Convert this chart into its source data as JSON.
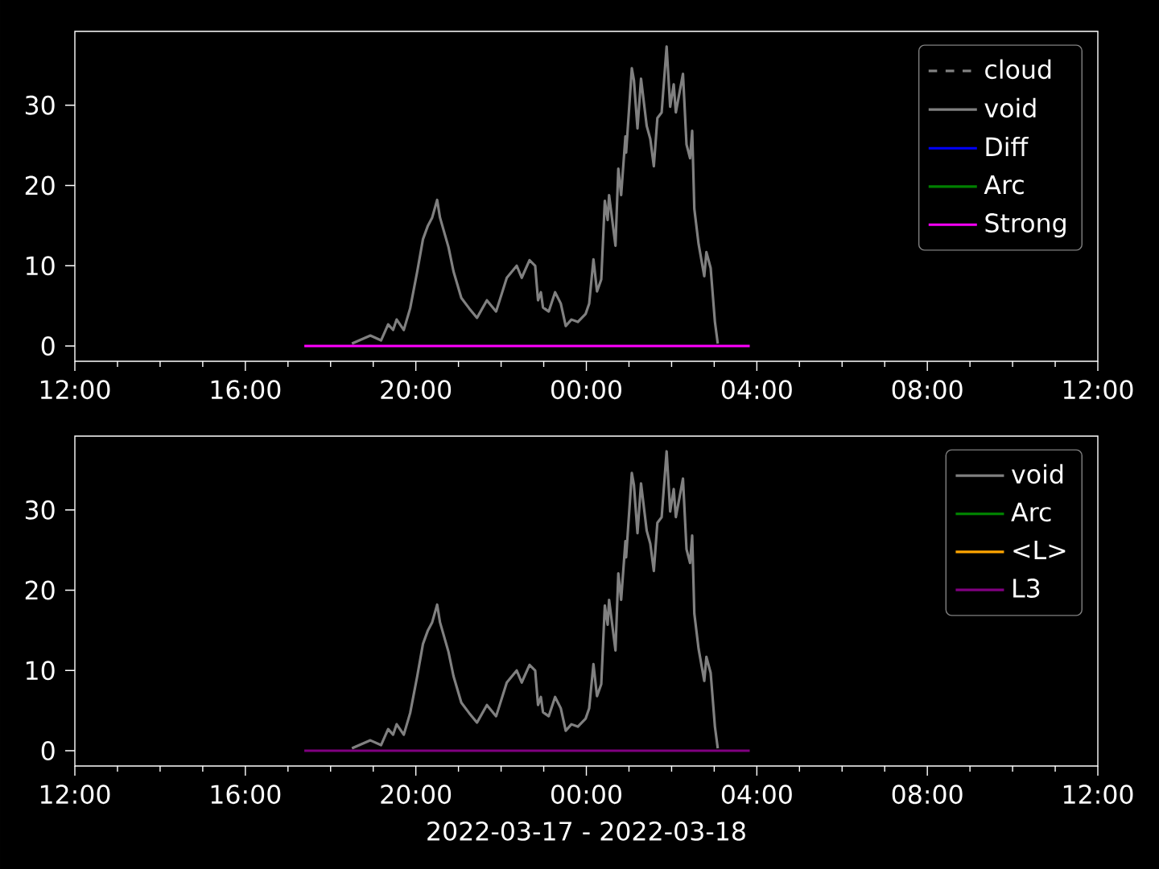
{
  "chart_data": [
    {
      "type": "line",
      "xlim": [
        "2022-03-17T12:00",
        "2022-03-18T12:00"
      ],
      "ylim": [
        -1.9,
        39.2
      ],
      "yticks": [
        0,
        10,
        20,
        30
      ],
      "xticks": [
        {
          "value": "2022-03-17T12:00",
          "label": "12:00"
        },
        {
          "value": "2022-03-17T13:00",
          "label": null
        },
        {
          "value": "2022-03-17T14:00",
          "label": null
        },
        {
          "value": "2022-03-17T15:00",
          "label": null
        },
        {
          "value": "2022-03-17T16:00",
          "label": "16:00"
        },
        {
          "value": "2022-03-17T17:00",
          "label": null
        },
        {
          "value": "2022-03-17T18:00",
          "label": null
        },
        {
          "value": "2022-03-17T19:00",
          "label": null
        },
        {
          "value": "2022-03-17T20:00",
          "label": "20:00"
        },
        {
          "value": "2022-03-17T21:00",
          "label": null
        },
        {
          "value": "2022-03-17T22:00",
          "label": null
        },
        {
          "value": "2022-03-17T23:00",
          "label": null
        },
        {
          "value": "2022-03-18T00:00",
          "label": "00:00"
        },
        {
          "value": "2022-03-18T01:00",
          "label": null
        },
        {
          "value": "2022-03-18T02:00",
          "label": null
        },
        {
          "value": "2022-03-18T03:00",
          "label": null
        },
        {
          "value": "2022-03-18T04:00",
          "label": "04:00"
        },
        {
          "value": "2022-03-18T05:00",
          "label": null
        },
        {
          "value": "2022-03-18T06:00",
          "label": null
        },
        {
          "value": "2022-03-18T07:00",
          "label": null
        },
        {
          "value": "2022-03-18T08:00",
          "label": "08:00"
        },
        {
          "value": "2022-03-18T09:00",
          "label": null
        },
        {
          "value": "2022-03-18T10:00",
          "label": null
        },
        {
          "value": "2022-03-18T11:00",
          "label": null
        },
        {
          "value": "2022-03-18T12:00",
          "label": "12:00"
        }
      ],
      "legend": "top right",
      "series": [
        {
          "name": "cloud",
          "color": "#808080",
          "line_style": "dashed"
        },
        {
          "name": "void",
          "color": "#808080",
          "x": [
            "2022-03-17T18:30",
            "2022-03-17T18:56",
            "2022-03-17T19:11",
            "2022-03-17T19:21",
            "2022-03-17T19:28",
            "2022-03-17T19:33",
            "2022-03-17T19:43",
            "2022-03-17T19:52",
            "2022-03-17T20:02",
            "2022-03-17T20:10",
            "2022-03-17T20:17",
            "2022-03-17T20:23",
            "2022-03-17T20:30",
            "2022-03-17T20:34",
            "2022-03-17T20:46",
            "2022-03-17T20:53",
            "2022-03-17T21:04",
            "2022-03-17T21:15",
            "2022-03-17T21:26",
            "2022-03-17T21:40",
            "2022-03-17T21:53",
            "2022-03-17T22:08",
            "2022-03-17T22:22",
            "2022-03-17T22:29",
            "2022-03-17T22:40",
            "2022-03-17T22:48",
            "2022-03-17T22:52",
            "2022-03-17T22:56",
            "2022-03-17T22:59",
            "2022-03-17T23:07",
            "2022-03-17T23:16",
            "2022-03-17T23:24",
            "2022-03-17T23:31",
            "2022-03-17T23:39",
            "2022-03-17T23:48",
            "2022-03-17T23:59",
            "2022-03-18T00:04",
            "2022-03-18T00:10",
            "2022-03-18T00:15",
            "2022-03-18T00:21",
            "2022-03-18T00:26",
            "2022-03-18T00:30",
            "2022-03-18T00:32",
            "2022-03-18T00:41",
            "2022-03-18T00:45",
            "2022-03-18T00:49",
            "2022-03-18T00:55",
            "2022-03-18T00:56",
            "2022-03-18T01:04",
            "2022-03-18T01:07",
            "2022-03-18T01:12",
            "2022-03-18T01:17",
            "2022-03-18T01:25",
            "2022-03-18T01:30",
            "2022-03-18T01:35",
            "2022-03-18T01:40",
            "2022-03-18T01:46",
            "2022-03-18T01:53",
            "2022-03-18T01:58",
            "2022-03-18T02:03",
            "2022-03-18T02:06",
            "2022-03-18T02:16",
            "2022-03-18T02:21",
            "2022-03-18T02:26",
            "2022-03-18T02:29",
            "2022-03-18T02:32",
            "2022-03-18T02:38",
            "2022-03-18T02:46",
            "2022-03-18T02:49",
            "2022-03-18T02:55",
            "2022-03-18T03:01",
            "2022-03-18T03:05"
          ],
          "values": [
            0.3,
            1.3,
            0.7,
            2.7,
            2.0,
            3.3,
            2.0,
            4.7,
            9.3,
            13.3,
            15.0,
            16.0,
            18.2,
            16.0,
            12.3,
            9.3,
            6.0,
            4.7,
            3.5,
            5.7,
            4.3,
            8.5,
            10.0,
            8.5,
            10.7,
            10.0,
            5.7,
            6.7,
            4.8,
            4.3,
            6.7,
            5.3,
            2.5,
            3.3,
            3.0,
            4.0,
            5.3,
            10.8,
            6.8,
            8.3,
            18.1,
            15.7,
            18.8,
            12.5,
            22.1,
            18.8,
            26.1,
            24.1,
            34.6,
            33.1,
            27.1,
            33.3,
            27.4,
            25.8,
            22.4,
            28.4,
            29.1,
            37.3,
            29.8,
            32.6,
            29.1,
            33.9,
            25.1,
            23.4,
            26.8,
            17.1,
            12.7,
            8.7,
            11.7,
            9.7,
            3.0,
            0.3
          ]
        },
        {
          "name": "Diff",
          "color": "#0000ff"
        },
        {
          "name": "Arc",
          "color": "#008000"
        },
        {
          "name": "Strong",
          "color": "#ff00ff",
          "x": [
            "2022-03-17T17:23",
            "2022-03-18T03:50"
          ],
          "values": [
            0,
            0
          ]
        }
      ]
    },
    {
      "type": "line",
      "xlabel": "2022-03-17 - 2022-03-18",
      "xlim": [
        "2022-03-17T12:00",
        "2022-03-18T12:00"
      ],
      "ylim": [
        -1.9,
        39.2
      ],
      "yticks": [
        0,
        10,
        20,
        30
      ],
      "xticks": [
        {
          "value": "2022-03-17T12:00",
          "label": "12:00"
        },
        {
          "value": "2022-03-17T13:00",
          "label": null
        },
        {
          "value": "2022-03-17T14:00",
          "label": null
        },
        {
          "value": "2022-03-17T15:00",
          "label": null
        },
        {
          "value": "2022-03-17T16:00",
          "label": "16:00"
        },
        {
          "value": "2022-03-17T17:00",
          "label": null
        },
        {
          "value": "2022-03-17T18:00",
          "label": null
        },
        {
          "value": "2022-03-17T19:00",
          "label": null
        },
        {
          "value": "2022-03-17T20:00",
          "label": "20:00"
        },
        {
          "value": "2022-03-17T21:00",
          "label": null
        },
        {
          "value": "2022-03-17T22:00",
          "label": null
        },
        {
          "value": "2022-03-17T23:00",
          "label": null
        },
        {
          "value": "2022-03-18T00:00",
          "label": "00:00"
        },
        {
          "value": "2022-03-18T01:00",
          "label": null
        },
        {
          "value": "2022-03-18T02:00",
          "label": null
        },
        {
          "value": "2022-03-18T03:00",
          "label": null
        },
        {
          "value": "2022-03-18T04:00",
          "label": "04:00"
        },
        {
          "value": "2022-03-18T05:00",
          "label": null
        },
        {
          "value": "2022-03-18T06:00",
          "label": null
        },
        {
          "value": "2022-03-18T07:00",
          "label": null
        },
        {
          "value": "2022-03-18T08:00",
          "label": "08:00"
        },
        {
          "value": "2022-03-18T09:00",
          "label": null
        },
        {
          "value": "2022-03-18T10:00",
          "label": null
        },
        {
          "value": "2022-03-18T11:00",
          "label": null
        },
        {
          "value": "2022-03-18T12:00",
          "label": "12:00"
        }
      ],
      "legend": "top right",
      "series": [
        {
          "name": "void",
          "color": "#808080",
          "x": [
            "2022-03-17T18:30",
            "2022-03-17T18:56",
            "2022-03-17T19:11",
            "2022-03-17T19:21",
            "2022-03-17T19:28",
            "2022-03-17T19:33",
            "2022-03-17T19:43",
            "2022-03-17T19:52",
            "2022-03-17T20:02",
            "2022-03-17T20:10",
            "2022-03-17T20:17",
            "2022-03-17T20:23",
            "2022-03-17T20:30",
            "2022-03-17T20:34",
            "2022-03-17T20:46",
            "2022-03-17T20:53",
            "2022-03-17T21:04",
            "2022-03-17T21:15",
            "2022-03-17T21:26",
            "2022-03-17T21:40",
            "2022-03-17T21:53",
            "2022-03-17T22:08",
            "2022-03-17T22:22",
            "2022-03-17T22:29",
            "2022-03-17T22:40",
            "2022-03-17T22:48",
            "2022-03-17T22:52",
            "2022-03-17T22:56",
            "2022-03-17T22:59",
            "2022-03-17T23:07",
            "2022-03-17T23:16",
            "2022-03-17T23:24",
            "2022-03-17T23:31",
            "2022-03-17T23:39",
            "2022-03-17T23:48",
            "2022-03-17T23:59",
            "2022-03-18T00:04",
            "2022-03-18T00:10",
            "2022-03-18T00:15",
            "2022-03-18T00:21",
            "2022-03-18T00:26",
            "2022-03-18T00:30",
            "2022-03-18T00:32",
            "2022-03-18T00:41",
            "2022-03-18T00:45",
            "2022-03-18T00:49",
            "2022-03-18T00:55",
            "2022-03-18T00:56",
            "2022-03-18T01:04",
            "2022-03-18T01:07",
            "2022-03-18T01:12",
            "2022-03-18T01:17",
            "2022-03-18T01:25",
            "2022-03-18T01:30",
            "2022-03-18T01:35",
            "2022-03-18T01:40",
            "2022-03-18T01:46",
            "2022-03-18T01:53",
            "2022-03-18T01:58",
            "2022-03-18T02:03",
            "2022-03-18T02:06",
            "2022-03-18T02:16",
            "2022-03-18T02:21",
            "2022-03-18T02:26",
            "2022-03-18T02:29",
            "2022-03-18T02:32",
            "2022-03-18T02:38",
            "2022-03-18T02:46",
            "2022-03-18T02:49",
            "2022-03-18T02:55",
            "2022-03-18T03:01",
            "2022-03-18T03:05"
          ],
          "values": [
            0.3,
            1.3,
            0.7,
            2.7,
            2.0,
            3.3,
            2.0,
            4.7,
            9.3,
            13.3,
            15.0,
            16.0,
            18.2,
            16.0,
            12.3,
            9.3,
            6.0,
            4.7,
            3.5,
            5.7,
            4.3,
            8.5,
            10.0,
            8.5,
            10.7,
            10.0,
            5.7,
            6.7,
            4.8,
            4.3,
            6.7,
            5.3,
            2.5,
            3.3,
            3.0,
            4.0,
            5.3,
            10.8,
            6.8,
            8.3,
            18.1,
            15.7,
            18.8,
            12.5,
            22.1,
            18.8,
            26.1,
            24.1,
            34.6,
            33.1,
            27.1,
            33.3,
            27.4,
            25.8,
            22.4,
            28.4,
            29.1,
            37.3,
            29.8,
            32.6,
            29.1,
            33.9,
            25.1,
            23.4,
            26.8,
            17.1,
            12.7,
            8.7,
            11.7,
            9.7,
            3.0,
            0.3
          ]
        },
        {
          "name": "Arc",
          "color": "#008000"
        },
        {
          "name": "<L>",
          "color": "#ffa500"
        },
        {
          "name": "L3",
          "color": "#800080",
          "x": [
            "2022-03-17T17:23",
            "2022-03-18T03:50"
          ],
          "values": [
            0,
            0
          ]
        }
      ]
    }
  ]
}
